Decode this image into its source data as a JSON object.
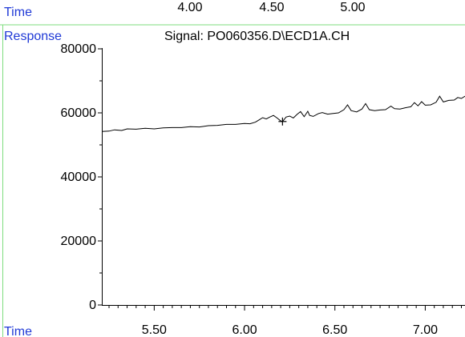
{
  "top_strip": {
    "time_label": "Time",
    "ticks": [
      "4.00",
      "4.50",
      "5.00"
    ]
  },
  "chart_data": {
    "type": "line",
    "title": "Signal: PO060356.D\\ECD1A.CH",
    "ylabel": "Response",
    "xlabel": "Time",
    "xlim": [
      5.21,
      7.22
    ],
    "ylim": [
      0,
      80000
    ],
    "x_ticks": [
      "5.50",
      "6.00",
      "6.50",
      "7.00"
    ],
    "x_tick_values": [
      5.5,
      6.0,
      6.5,
      7.0
    ],
    "y_ticks": [
      "0",
      "20000",
      "40000",
      "60000",
      "80000"
    ],
    "y_tick_values": [
      0,
      20000,
      40000,
      60000,
      80000
    ],
    "grid": false,
    "colors": {
      "axis_text": "#1f39d6",
      "frame": "#7ddc7d",
      "trace": "#000000"
    },
    "cursor_marker": {
      "x": 6.21,
      "y": 57300
    },
    "series": [
      {
        "points": [
          [
            5.21,
            54200
          ],
          [
            5.25,
            54300
          ],
          [
            5.28,
            54700
          ],
          [
            5.32,
            54500
          ],
          [
            5.35,
            55000
          ],
          [
            5.4,
            54900
          ],
          [
            5.45,
            55200
          ],
          [
            5.5,
            55000
          ],
          [
            5.55,
            55300
          ],
          [
            5.6,
            55400
          ],
          [
            5.65,
            55400
          ],
          [
            5.7,
            55700
          ],
          [
            5.75,
            55600
          ],
          [
            5.8,
            56000
          ],
          [
            5.85,
            56100
          ],
          [
            5.9,
            56400
          ],
          [
            5.95,
            56400
          ],
          [
            6.0,
            56700
          ],
          [
            6.03,
            56600
          ],
          [
            6.06,
            57100
          ],
          [
            6.08,
            57800
          ],
          [
            6.1,
            58500
          ],
          [
            6.12,
            58100
          ],
          [
            6.14,
            58700
          ],
          [
            6.16,
            59200
          ],
          [
            6.18,
            58400
          ],
          [
            6.2,
            57500
          ],
          [
            6.21,
            57300
          ],
          [
            6.23,
            58700
          ],
          [
            6.25,
            59000
          ],
          [
            6.27,
            58400
          ],
          [
            6.29,
            59500
          ],
          [
            6.31,
            60400
          ],
          [
            6.33,
            58800
          ],
          [
            6.35,
            60500
          ],
          [
            6.36,
            59200
          ],
          [
            6.38,
            58900
          ],
          [
            6.41,
            59800
          ],
          [
            6.43,
            60100
          ],
          [
            6.46,
            59600
          ],
          [
            6.49,
            59800
          ],
          [
            6.52,
            60000
          ],
          [
            6.55,
            61000
          ],
          [
            6.57,
            62500
          ],
          [
            6.59,
            60700
          ],
          [
            6.62,
            60300
          ],
          [
            6.65,
            61200
          ],
          [
            6.67,
            62900
          ],
          [
            6.69,
            61000
          ],
          [
            6.72,
            60700
          ],
          [
            6.75,
            60900
          ],
          [
            6.78,
            61000
          ],
          [
            6.81,
            62100
          ],
          [
            6.83,
            61300
          ],
          [
            6.86,
            61200
          ],
          [
            6.89,
            61600
          ],
          [
            6.92,
            61900
          ],
          [
            6.94,
            63200
          ],
          [
            6.96,
            62200
          ],
          [
            6.98,
            63500
          ],
          [
            7.0,
            62400
          ],
          [
            7.03,
            62500
          ],
          [
            7.06,
            63300
          ],
          [
            7.08,
            65200
          ],
          [
            7.1,
            63400
          ],
          [
            7.13,
            63900
          ],
          [
            7.16,
            64000
          ],
          [
            7.18,
            64800
          ],
          [
            7.2,
            64500
          ],
          [
            7.22,
            65200
          ]
        ]
      }
    ]
  }
}
